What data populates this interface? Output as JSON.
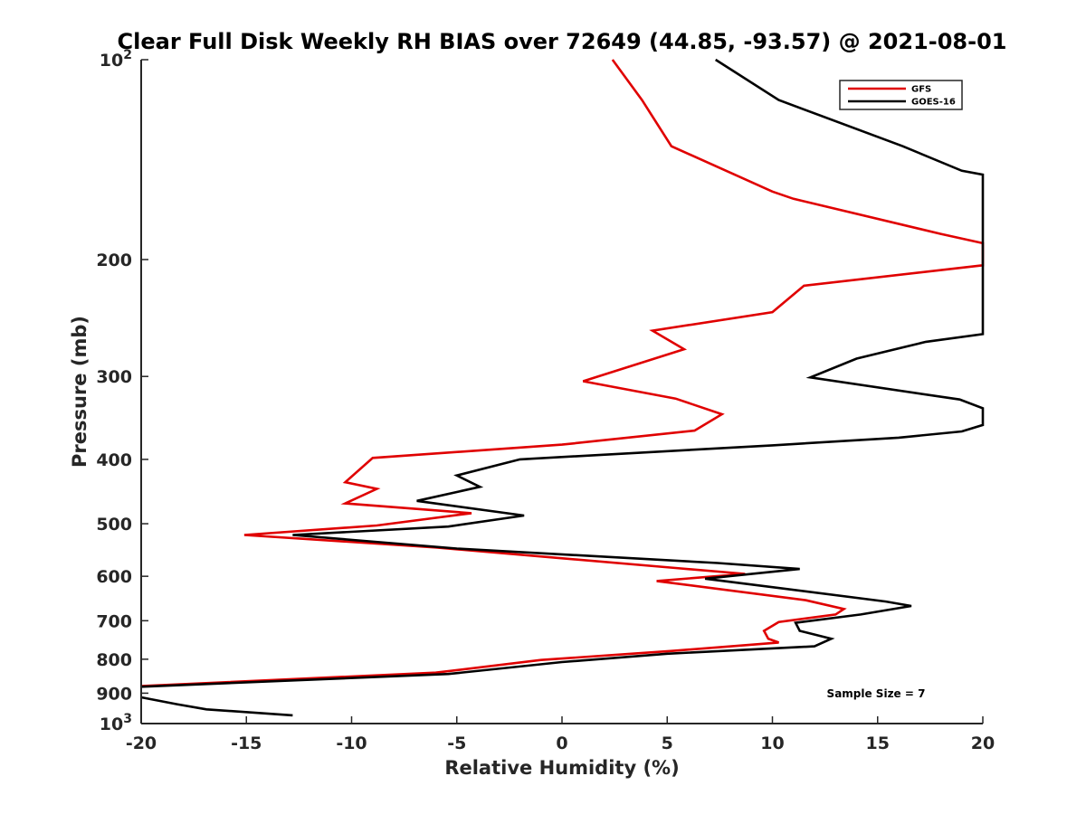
{
  "chart_data": {
    "type": "line",
    "title": "Clear Full Disk Weekly RH BIAS over 72649 (44.85, -93.57) @ 2021-08-01",
    "xlabel": "Relative Humidity (%)",
    "ylabel": "Pressure (mb)",
    "xlim": [
      -20,
      20
    ],
    "ylim": [
      100,
      1000
    ],
    "y_scale": "log",
    "y_reversed": true,
    "x_ticks": [
      "-20",
      "-15",
      "-10",
      "-5",
      "0",
      "5",
      "10",
      "15",
      "20"
    ],
    "y_ticks": [
      {
        "value": 100,
        "base": "10",
        "exp": "2"
      },
      {
        "value": 200,
        "label": "200"
      },
      {
        "value": 300,
        "label": "300"
      },
      {
        "value": 400,
        "label": "400"
      },
      {
        "value": 500,
        "label": "500"
      },
      {
        "value": 600,
        "label": "600"
      },
      {
        "value": 700,
        "label": "700"
      },
      {
        "value": 800,
        "label": "800"
      },
      {
        "value": 900,
        "label": "900"
      },
      {
        "value": 1000,
        "base": "10",
        "exp": "3"
      }
    ],
    "legend_position": "top-right",
    "annotation": "Sample Size = 7",
    "series": [
      {
        "name": "GFS",
        "color": "#e00000",
        "points": [
          [
            2.4,
            100
          ],
          [
            3.8,
            115
          ],
          [
            5.2,
            135
          ],
          [
            10,
            158
          ],
          [
            11,
            162
          ],
          [
            18,
            183
          ],
          [
            20,
            189
          ],
          [
            20,
            204
          ],
          [
            11.5,
            219
          ],
          [
            10,
            240
          ],
          [
            4.3,
            256
          ],
          [
            5.8,
            273
          ],
          [
            1,
            305
          ],
          [
            5.4,
            324
          ],
          [
            7.6,
            342
          ],
          [
            6.3,
            362
          ],
          [
            0,
            380
          ],
          [
            -9,
            398
          ],
          [
            -10.3,
            433
          ],
          [
            -8.8,
            443
          ],
          [
            -10.3,
            466
          ],
          [
            -4.3,
            482
          ],
          [
            -8.8,
            503
          ],
          [
            -15.1,
            520
          ],
          [
            -6,
            543
          ],
          [
            5.4,
            583
          ],
          [
            8.7,
            595
          ],
          [
            4.5,
            610
          ],
          [
            11.6,
            652
          ],
          [
            13.4,
            672
          ],
          [
            13,
            685
          ],
          [
            10.3,
            703
          ],
          [
            9.6,
            725
          ],
          [
            9.8,
            745
          ],
          [
            10.3,
            755
          ],
          [
            5.3,
            777
          ],
          [
            -1,
            802
          ],
          [
            -6,
            838
          ],
          [
            -20,
            878
          ]
        ]
      },
      {
        "name": "GOES-16",
        "color": "#000000",
        "points": [
          [
            7.3,
            100
          ],
          [
            10.3,
            115
          ],
          [
            16.2,
            135
          ],
          [
            19,
            147
          ],
          [
            20,
            149
          ],
          [
            20,
            259
          ],
          [
            17.3,
            266
          ],
          [
            14,
            282
          ],
          [
            11.8,
            301
          ],
          [
            18.9,
            325
          ],
          [
            20,
            335
          ],
          [
            20,
            355
          ],
          [
            19,
            363
          ],
          [
            16,
            371
          ],
          [
            10,
            381
          ],
          [
            -2,
            400
          ],
          [
            -5,
            423
          ],
          [
            -3.9,
            440
          ],
          [
            -6.9,
            462
          ],
          [
            -1.8,
            486
          ],
          [
            -5.4,
            505
          ],
          [
            -12.8,
            520
          ],
          [
            -5,
            545
          ],
          [
            7.4,
            573
          ],
          [
            11.3,
            585
          ],
          [
            6.8,
            605
          ],
          [
            15.4,
            655
          ],
          [
            16.6,
            665
          ],
          [
            14.2,
            685
          ],
          [
            11.1,
            705
          ],
          [
            11.3,
            725
          ],
          [
            12.8,
            745
          ],
          [
            12,
            765
          ],
          [
            5,
            785
          ],
          [
            0,
            808
          ],
          [
            -5.4,
            842
          ],
          [
            -20,
            880
          ]
        ]
      },
      {
        "name": "",
        "color": "#000000",
        "points": [
          [
            -20,
            913
          ],
          [
            -18.3,
            935
          ],
          [
            -16.9,
            952
          ],
          [
            -12.8,
            972
          ]
        ]
      }
    ]
  }
}
